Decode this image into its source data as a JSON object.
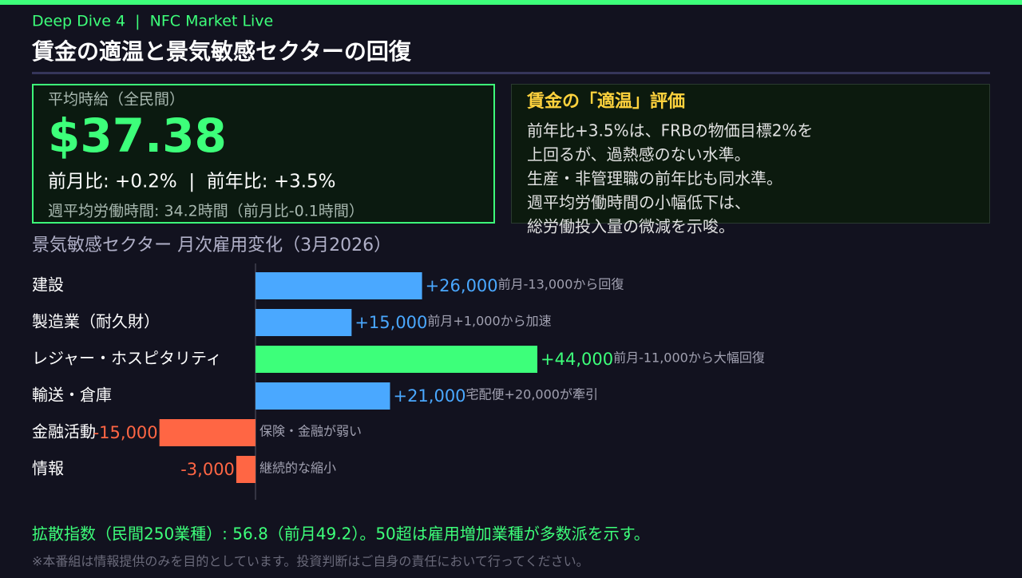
{
  "header": {
    "show": "Deep Dive 4  |  NFC Market Live",
    "title": "賃金の適温と景気敏感セクターの回復"
  },
  "wage_box": {
    "label": "平均時給（全民間）",
    "value": "$37.38",
    "change": "前月比: +0.2%  |  前年比: +3.5%",
    "hours": "週平均労働時間: 34.2時間（前月比-0.1時間）"
  },
  "comment_box": {
    "title": "賃金の「適温」評価",
    "lines": [
      "前年比+3.5%は、FRBの物価目標2%を",
      "上回るが、過熱感のない水準。",
      "生産・非管理職の前年比も同水準。",
      "週平均労働時間の小幅低下は、",
      "総労働投入量の微減を示唆。"
    ]
  },
  "chart_data": {
    "type": "hbar",
    "title": "景気敏感セクター 月次雇用変化（3月2026）",
    "categories": [
      "建設",
      "製造業（耐久財）",
      "レジャー・ホスピタリティ",
      "輸送・倉庫",
      "金融活動",
      "情報"
    ],
    "values": [
      26000,
      15000,
      44000,
      21000,
      -15000,
      -3000
    ],
    "value_labels": [
      "+26,000",
      "+15,000",
      "+44,000",
      "+21,000",
      "-15,000",
      "-3,000"
    ],
    "colors": [
      "#4aa8ff",
      "#4aa8ff",
      "#3dff7a",
      "#4aa8ff",
      "#ff6644",
      "#ff6644"
    ],
    "annotations": [
      "前月-13,000から回復",
      "前月+1,000から加速",
      "前月-11,000から大幅回復",
      "宅配便+20,000が牽引",
      "保険・金融が弱い",
      "継続的な縮小"
    ]
  },
  "footer": {
    "note": "拡散指数（民間250業種）: 56.8（前月49.2）。50超は雇用増加業種が多数派を示す。",
    "disclaimer": "※本番組は情報提供のみを目的としています。投資判断はご自身の責任において行ってください。"
  }
}
